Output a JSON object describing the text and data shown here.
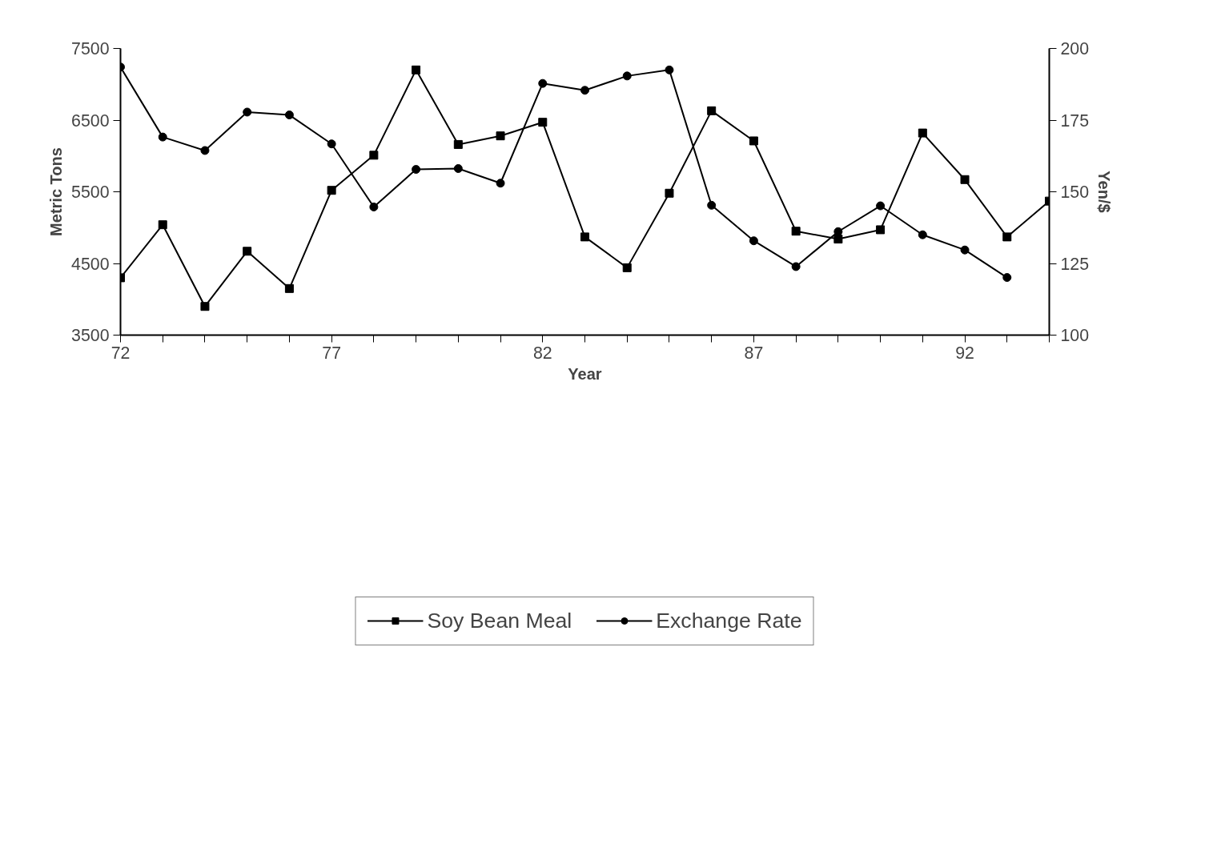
{
  "chart_data": {
    "type": "line",
    "xlabel": "Year",
    "ylabel": "Metric Tons",
    "y2label": "Yen/$",
    "x": [
      72,
      73,
      74,
      75,
      76,
      77,
      78,
      79,
      80,
      81,
      82,
      83,
      84,
      85,
      86,
      87,
      88,
      89,
      90,
      91,
      92,
      93,
      94
    ],
    "series": [
      {
        "name": "Soy Bean Meal",
        "color": "#000000",
        "marker": "square",
        "values": [
          4300,
          5040,
          3900,
          4670,
          4150,
          5520,
          6010,
          7200,
          6160,
          6280,
          6470,
          4870,
          4440,
          5480,
          6630,
          6210,
          4950,
          4840,
          4970,
          6320,
          5670,
          4870,
          5370
        ]
      },
      {
        "name": "Exchange Rate",
        "color": "#000000",
        "marker": "circle",
        "axis": "y2",
        "values": [
          193.5,
          169.1,
          164.4,
          177.8,
          176.8,
          166.7,
          144.7,
          157.8,
          158.1,
          153.0,
          187.8,
          185.4,
          190.4,
          192.5,
          145.3,
          132.9,
          123.9,
          136.1,
          145.1,
          135.0,
          129.7,
          120.1,
          null
        ]
      }
    ],
    "xlim": [
      72,
      94
    ],
    "xticks": [
      72,
      {
        "value": 73,
        "label": null
      },
      {
        "value": 74,
        "label": null
      },
      {
        "value": 75,
        "label": null
      },
      {
        "value": 76,
        "label": null
      },
      77,
      {
        "value": 78,
        "label": null
      },
      {
        "value": 79,
        "label": null
      },
      {
        "value": 80,
        "label": null
      },
      {
        "value": 81,
        "label": null
      },
      82,
      {
        "value": 83,
        "label": null
      },
      {
        "value": 84,
        "label": null
      },
      {
        "value": 85,
        "label": null
      },
      {
        "value": 86,
        "label": null
      },
      87,
      {
        "value": 88,
        "label": null
      },
      {
        "value": 89,
        "label": null
      },
      {
        "value": 90,
        "label": null
      },
      {
        "value": 91,
        "label": null
      },
      92,
      {
        "value": 93,
        "label": null
      },
      {
        "value": 94,
        "label": null
      }
    ],
    "ylim": [
      3500,
      7500
    ],
    "yticks": [
      3500,
      4500,
      5500,
      6500,
      7500
    ],
    "y2lim": [
      100,
      200
    ],
    "y2ticks": [
      100,
      125,
      150,
      175,
      200
    ],
    "grid": false,
    "legend": "bottom",
    "line_style": "solid"
  }
}
